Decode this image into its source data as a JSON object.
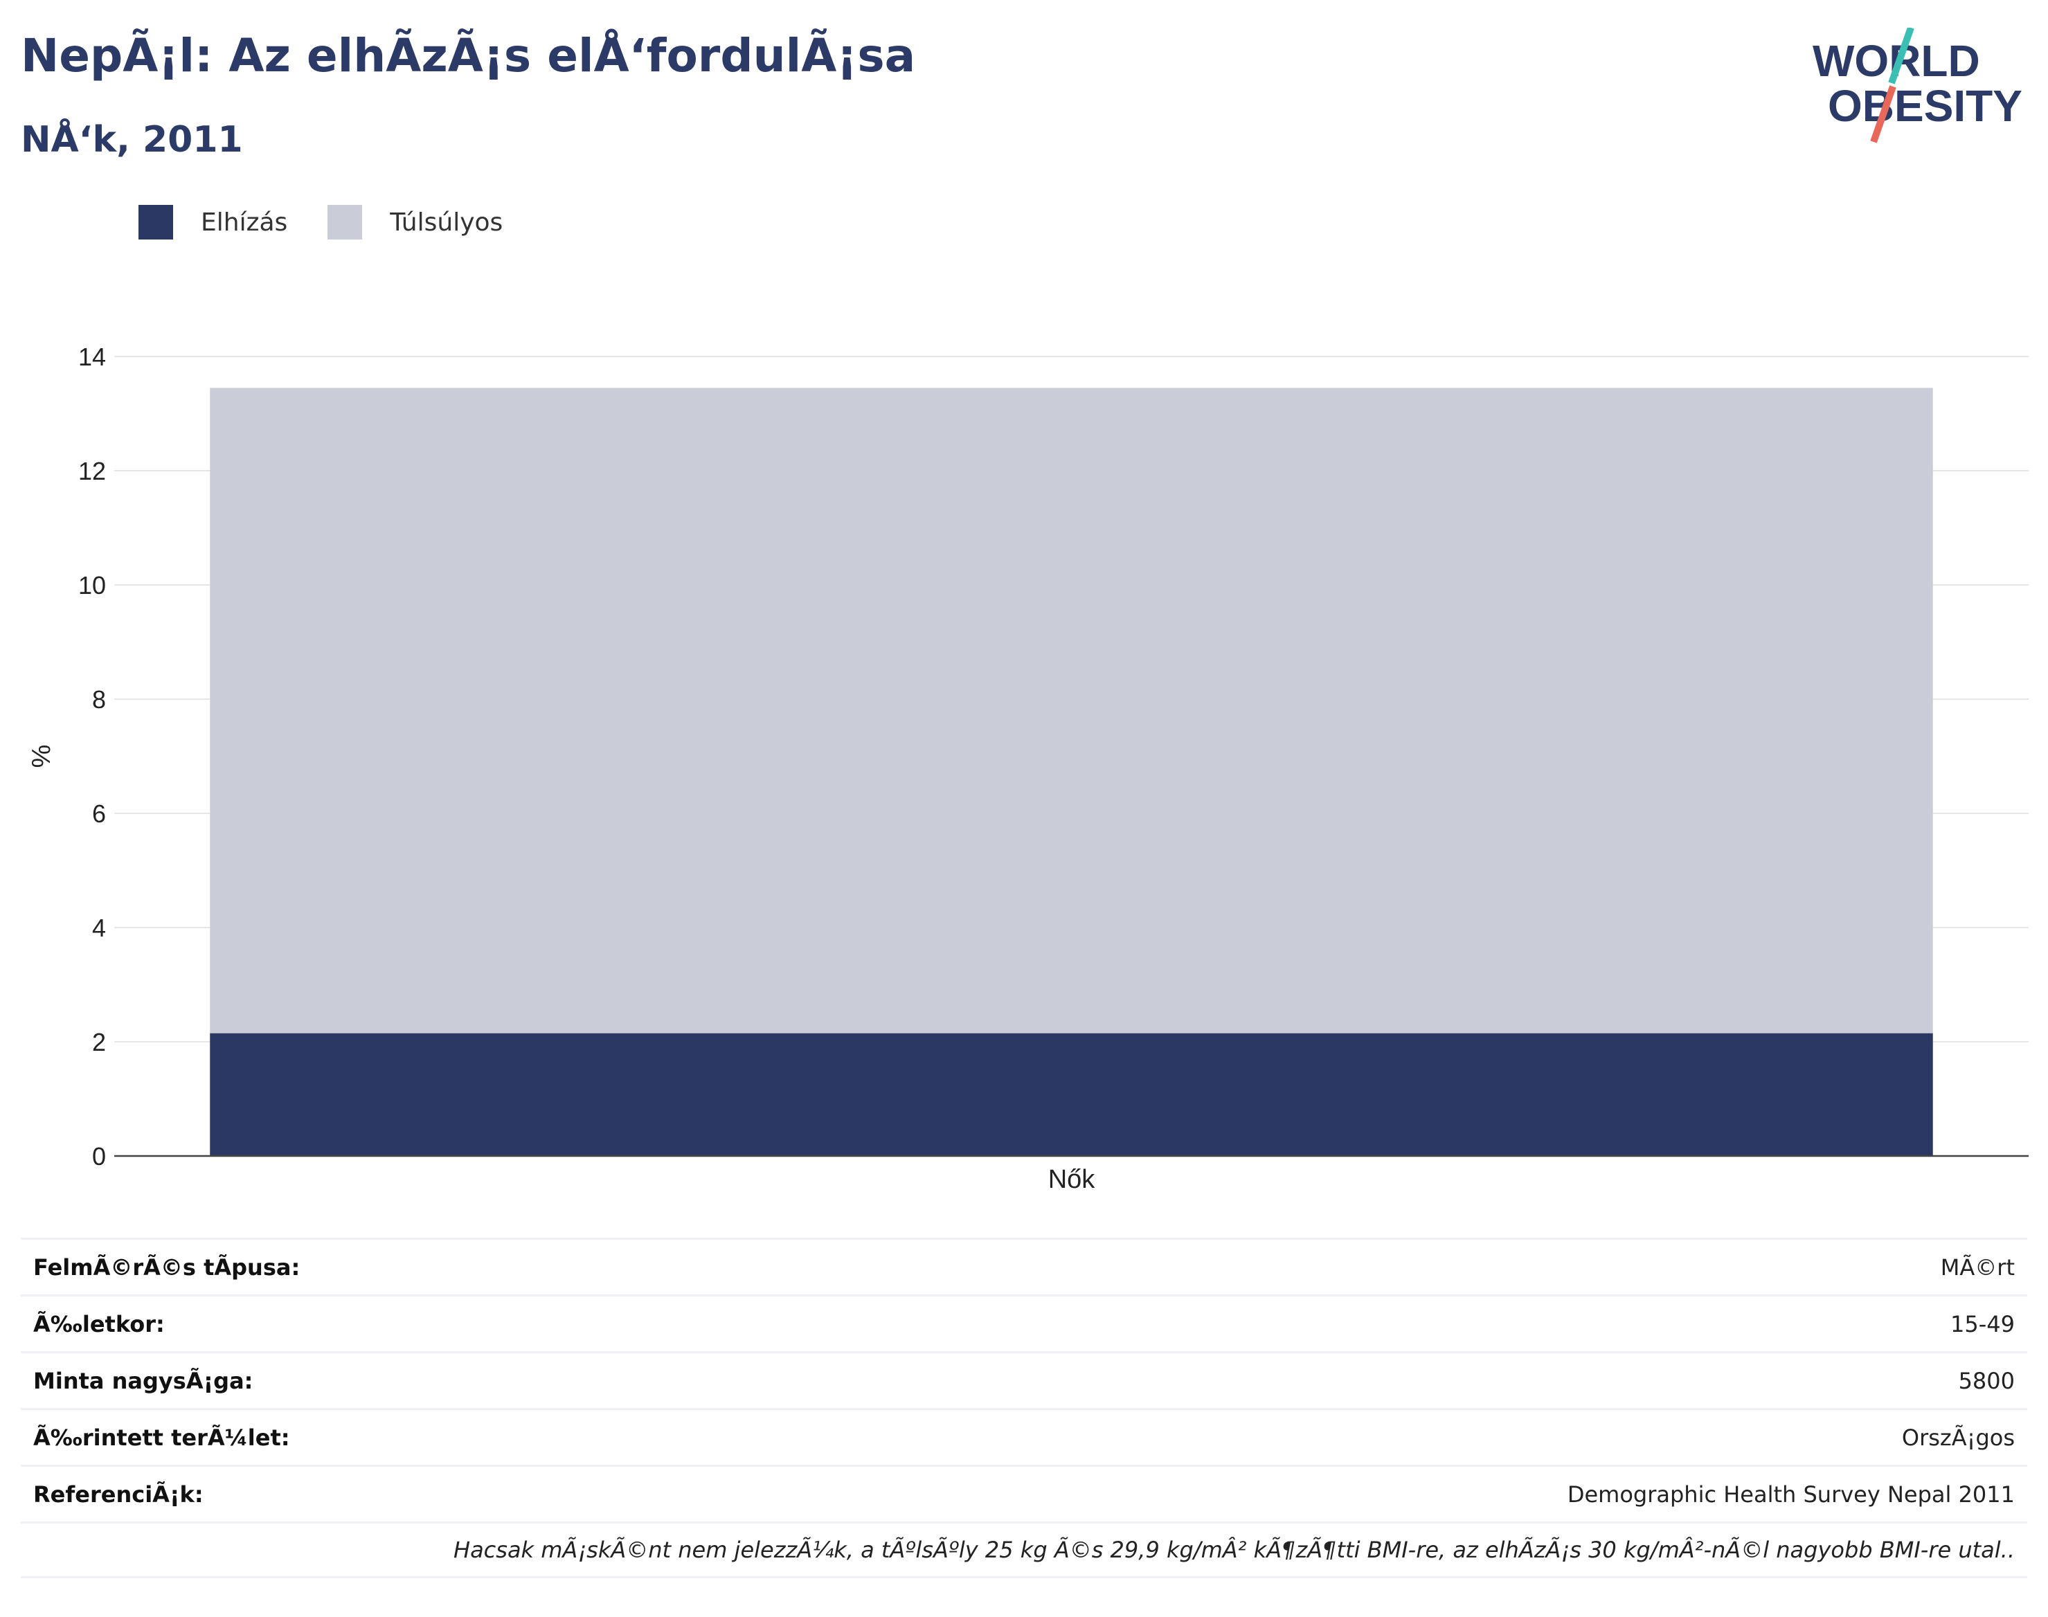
{
  "header": {
    "title": "NepÃ¡l: Az elhÃ­zÃ¡s elÅ‘fordulÃ¡sa",
    "subtitle": "NÅ‘k, 2011"
  },
  "logo": {
    "line1": "WORLD",
    "line2": "OBESITY",
    "accent_teal": "#3bbfb5",
    "accent_red": "#e8685a"
  },
  "colors": {
    "obesity": "#2b3864",
    "overweight": "#cacdd8",
    "title": "#2b3a67",
    "grid": "#e6e6e6"
  },
  "chart_data": {
    "type": "bar",
    "stacked": true,
    "categories": [
      "Nők"
    ],
    "series": [
      {
        "name": "Elhízás",
        "values": [
          2.15
        ]
      },
      {
        "name": "Túlsúlyos",
        "values": [
          11.3
        ]
      }
    ],
    "ylabel": "%",
    "ylim": [
      0,
      14
    ],
    "yticks": [
      0,
      2,
      4,
      6,
      8,
      10,
      12,
      14
    ],
    "grid": true,
    "legend": "top-left"
  },
  "info": [
    {
      "label": "FelmÃ©rÃ©s tÃpusa:",
      "value": "MÃ©rt"
    },
    {
      "label": "Ã‰letkor:",
      "value": "15-49"
    },
    {
      "label": "Minta nagysÃ¡ga:",
      "value": "5800"
    },
    {
      "label": "Ã‰rintett terÃ¼let:",
      "value": "OrszÃ¡gos"
    },
    {
      "label": "ReferenciÃ¡k:",
      "value": "Demographic Health Survey Nepal 2011"
    }
  ],
  "footnote": "Hacsak mÃ¡skÃ©nt nem jelezzÃ¼k, a tÃºlsÃºly 25 kg Ã©s 29,9 kg/mÂ² kÃ¶zÃ¶tti BMI-re, az elhÃ­zÃ¡s 30 kg/mÂ²-nÃ©l nagyobb BMI-re utal.."
}
